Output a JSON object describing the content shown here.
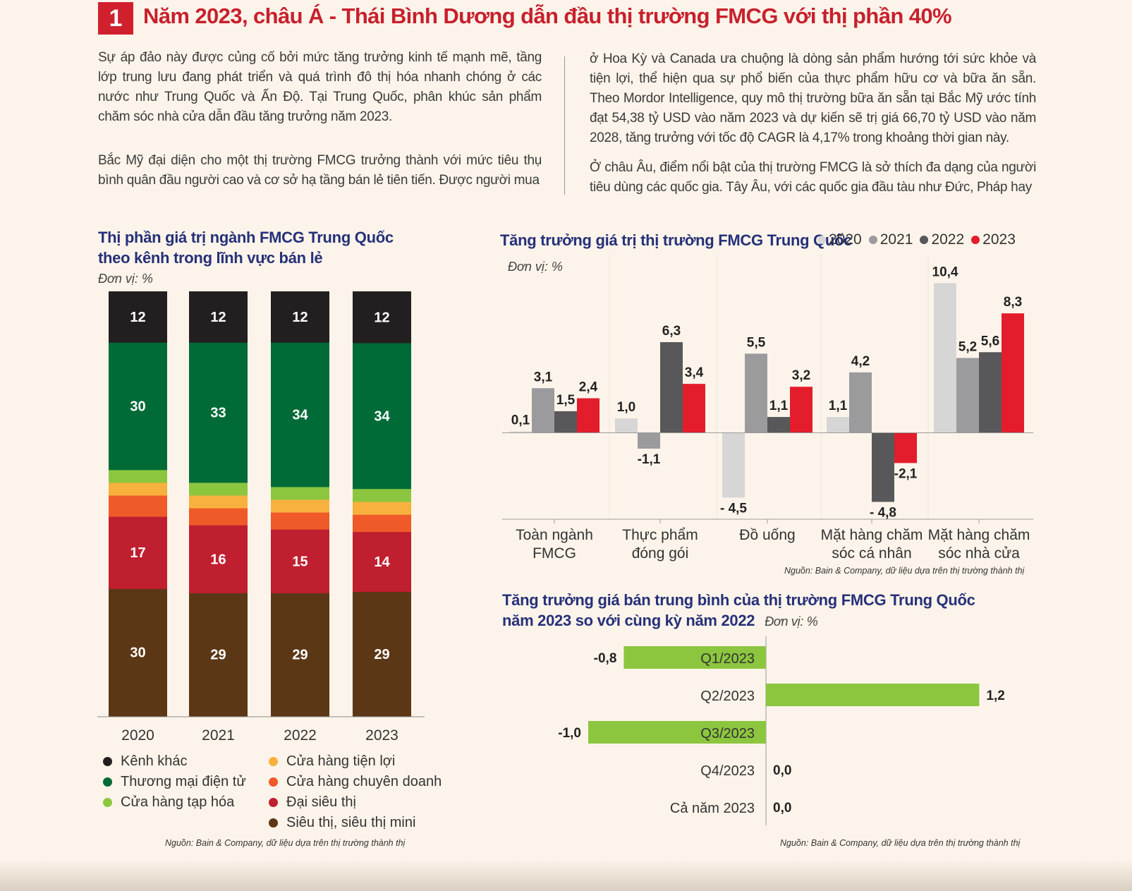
{
  "header": {
    "number": "1",
    "title": "Năm 2023, châu Á - Thái Bình Dương dẫn đầu thị trường FMCG với thị phần 40%"
  },
  "text": {
    "left_p1": "Sự áp đảo này được củng cố bởi mức tăng trưởng kinh tế mạnh mẽ, tầng lớp trung lưu đang phát triển và quá trình đô thị hóa nhanh chóng ở các nước như Trung Quốc và Ấn Độ. Tại Trung Quốc, phân khúc sản phẩm chăm sóc nhà cửa dẫn đầu tăng trưởng năm 2023.",
    "left_p2": "Bắc Mỹ đại diện cho một thị trường FMCG trưởng thành với mức tiêu thụ bình quân đầu người cao và cơ sở hạ tầng bán lẻ tiên tiến. Được người mua",
    "right_p1": "ở Hoa Kỳ và Canada ưa chuộng là dòng sản phẩm hướng tới sức khỏe và tiện lợi, thể hiện qua sự phổ biến của thực phẩm hữu cơ và bữa ăn sẵn. Theo Mordor Intelligence, quy mô thị trường bữa ăn sẵn tại Bắc Mỹ ước tính đạt 54,38 tỷ USD vào năm 2023 và dự kiến sẽ trị giá 66,70 tỷ USD vào năm 2028, tăng trưởng với tốc độ CAGR là 4,17% trong khoảng thời gian này.",
    "right_p2": "Ở châu Âu, điểm nổi bật của thị trường FMCG là sở thích đa dạng của người tiêu dùng các quốc gia. Tây Âu, với các quốc gia đầu tàu như Đức, Pháp hay"
  },
  "chart_data": [
    {
      "type": "bar",
      "stacked": true,
      "title": "Thị phần giá trị ngành FMCG Trung Quốc theo kênh trong lĩnh vực bán lẻ",
      "title_line1": "Thị phần giá trị ngành FMCG Trung Quốc",
      "title_line2": "theo kênh trong lĩnh vực bán lẻ",
      "unit": "Đơn vị: %",
      "categories": [
        "2020",
        "2021",
        "2022",
        "2023"
      ],
      "series": [
        {
          "name": "Siêu thị, siêu thị mini",
          "color": "#5c3716",
          "values": [
            30,
            29,
            29,
            29
          ],
          "labeled": true
        },
        {
          "name": "Đại siêu thị",
          "color": "#c01f30",
          "values": [
            17,
            16,
            15,
            14
          ],
          "labeled": true
        },
        {
          "name": "Cửa hàng chuyên doanh",
          "color": "#ef5a28",
          "values": [
            5,
            4,
            4,
            4
          ],
          "labeled": false
        },
        {
          "name": "Cửa hàng tiện lợi",
          "color": "#f8b13e",
          "values": [
            3,
            3,
            3,
            3
          ],
          "labeled": false
        },
        {
          "name": "Cửa hàng tạp hóa",
          "color": "#8cc63f",
          "values": [
            3,
            3,
            3,
            3
          ],
          "labeled": false
        },
        {
          "name": "Thương mại điện tử",
          "color": "#006b37",
          "values": [
            30,
            33,
            34,
            34
          ],
          "labeled": true
        },
        {
          "name": "Kênh khác",
          "color": "#231f20",
          "values": [
            12,
            12,
            12,
            12
          ],
          "labeled": true
        }
      ],
      "legend": [
        {
          "label": "Kênh khác",
          "color": "#231f20"
        },
        {
          "label": "Thương mại điện tử",
          "color": "#006b37"
        },
        {
          "label": "Cửa hàng tạp hóa",
          "color": "#8cc63f"
        },
        {
          "label": "Cửa hàng tiện lợi",
          "color": "#f8b13e"
        },
        {
          "label": "Cửa hàng chuyên doanh",
          "color": "#ef5a28"
        },
        {
          "label": "Đại siêu thị",
          "color": "#c01f30"
        },
        {
          "label": "Siêu thị, siêu thị mini",
          "color": "#5c3716"
        }
      ],
      "source": "Nguồn: Bain & Company, dữ liệu dựa trên thị trường thành thị"
    },
    {
      "type": "bar",
      "title": "Tăng trưởng giá trị thị trường FMCG Trung Quốc",
      "unit": "Đơn vị: %",
      "categories": [
        [
          "Toàn ngành",
          "FMCG"
        ],
        [
          "Thực phẩm",
          "đóng gói"
        ],
        [
          "Đồ uống"
        ],
        [
          "Mặt hàng chăm",
          "sóc cá nhân"
        ],
        [
          "Mặt hàng chăm",
          "sóc nhà cửa"
        ]
      ],
      "series": [
        {
          "name": "2020",
          "color": "#d6d6d6",
          "values": [
            0.1,
            1.0,
            -4.5,
            1.1,
            10.4
          ],
          "labels": [
            "0,1",
            "1,0",
            "- 4,5",
            "1,1",
            "10,4"
          ]
        },
        {
          "name": "2021",
          "color": "#9b9b9e",
          "values": [
            3.1,
            -1.1,
            5.5,
            4.2,
            5.2
          ],
          "labels": [
            "3,1",
            "-1,1",
            "5,5",
            "4,2",
            "5,2"
          ]
        },
        {
          "name": "2022",
          "color": "#58585a",
          "values": [
            1.5,
            6.3,
            1.1,
            -4.8,
            5.6
          ],
          "labels": [
            "1,5",
            "6,3",
            "1,1",
            "- 4,8",
            "5,6"
          ]
        },
        {
          "name": "2023",
          "color": "#e31d2b",
          "values": [
            2.4,
            3.4,
            3.2,
            -2.1,
            8.3
          ],
          "labels": [
            "2,4",
            "3,4",
            "3,2",
            "-2,1",
            "8,3"
          ]
        }
      ],
      "source": "Nguồn: Bain & Company, dữ liệu dựa trên thị trường thành thị"
    },
    {
      "type": "bar",
      "orientation": "horizontal",
      "title": "Tăng trưởng giá bán trung bình của thị trường FMCG Trung Quốc năm 2023 so với cùng kỳ năm 2022",
      "title_line1": "Tăng trưởng giá bán trung bình của thị trường FMCG Trung Quốc",
      "title_line2": "năm 2023 so với cùng kỳ năm 2022",
      "unit": "Đơn vị: %",
      "color": "#8cc63f",
      "categories": [
        "Q1/2023",
        "Q2/2023",
        "Q3/2023",
        "Q4/2023",
        "Cả năm 2023"
      ],
      "values": [
        -0.8,
        1.2,
        -1.0,
        0.0,
        0.0
      ],
      "labels": [
        "-0,8",
        "1,2",
        "-1,0",
        "0,0",
        "0,0"
      ],
      "source": "Nguồn: Bain & Company, dữ liệu dựa trên thị trường thành thị"
    }
  ]
}
